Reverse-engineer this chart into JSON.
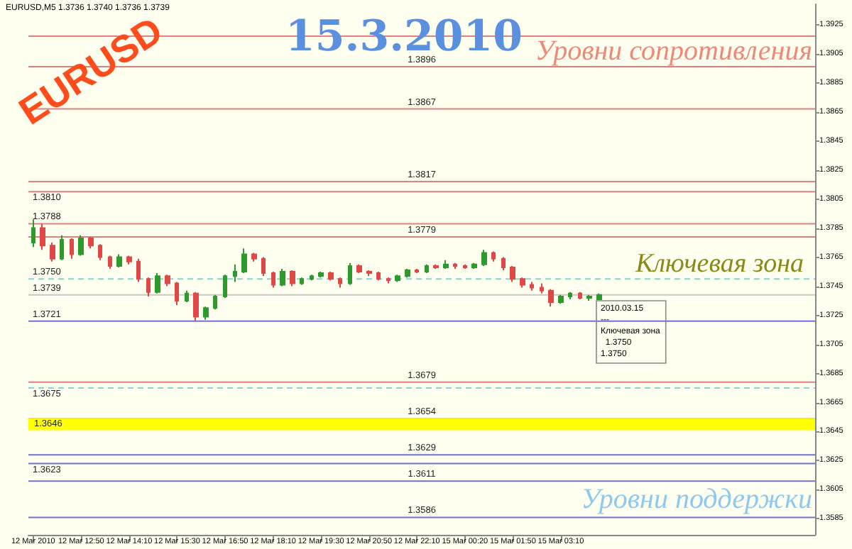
{
  "chart_data": {
    "type": "candlestick",
    "title": "15.3.2010",
    "annotations": [
      "EURUSD,M5 1.3736 1.3740 1.3736 1.3739",
      "EURUSD",
      "Уровни сопротивления",
      "Ключевая зона",
      "2010.03.15\n---\nКлючевая зона\n  1.3750\n1.3750",
      "Уровни поддержки"
    ],
    "categories": [
      "12 Mar 2010",
      null,
      null,
      null,
      null,
      "12 Mar 12:50",
      null,
      null,
      null,
      null,
      "12 Mar 14:10",
      null,
      null,
      null,
      null,
      "12 Mar 15:30",
      null,
      null,
      null,
      null,
      "12 Mar 16:50",
      null,
      null,
      null,
      null,
      "12 Mar 18:10",
      null,
      null,
      null,
      null,
      "12 Mar 19:30",
      null,
      null,
      null,
      null,
      "12 Mar 20:50",
      null,
      null,
      null,
      null,
      "12 Mar 22:10",
      null,
      null,
      null,
      null,
      "15 Mar 00:20",
      null,
      null,
      null,
      null,
      "15 Mar 01:50",
      null,
      null,
      null,
      null,
      "15 Mar 03:10",
      null,
      null,
      null,
      null,
      null,
      null,
      null,
      null,
      null,
      null,
      null,
      null,
      null,
      null,
      null,
      null,
      null,
      null,
      null,
      null,
      null,
      null,
      null,
      null,
      null,
      null
    ],
    "ohlc": [
      [
        1.3775,
        1.3791,
        1.3772,
        1.3785
      ],
      [
        1.3785,
        1.3788,
        1.377,
        1.3773
      ],
      [
        1.3773,
        1.3775,
        1.3762,
        1.3764
      ],
      [
        1.3764,
        1.378,
        1.3763,
        1.3777
      ],
      [
        1.3777,
        1.3778,
        1.3764,
        1.3767
      ],
      [
        1.3767,
        1.378,
        1.3766,
        1.3778
      ],
      [
        1.3778,
        1.3779,
        1.3771,
        1.3773
      ],
      [
        1.3773,
        1.3774,
        1.3763,
        1.3765
      ],
      [
        1.3765,
        1.3766,
        1.3757,
        1.3759
      ],
      [
        1.3759,
        1.3767,
        1.3758,
        1.3765
      ],
      [
        1.3765,
        1.3766,
        1.376,
        1.3762
      ],
      [
        1.3762,
        1.3764,
        1.3748,
        1.375
      ],
      [
        1.375,
        1.3751,
        1.3738,
        1.3741
      ],
      [
        1.3741,
        1.3754,
        1.374,
        1.3752
      ],
      [
        1.3752,
        1.3753,
        1.3745,
        1.3747
      ],
      [
        1.3747,
        1.3748,
        1.3732,
        1.3735
      ],
      [
        1.3735,
        1.3742,
        1.3734,
        1.374
      ],
      [
        1.374,
        1.3741,
        1.3721,
        1.3724
      ],
      [
        1.3724,
        1.3731,
        1.3722,
        1.373
      ],
      [
        1.373,
        1.3739,
        1.3729,
        1.3738
      ],
      [
        1.3738,
        1.3753,
        1.3737,
        1.3752
      ],
      [
        1.3752,
        1.376,
        1.3748,
        1.3755
      ],
      [
        1.3755,
        1.3771,
        1.3754,
        1.3767
      ],
      [
        1.3767,
        1.3768,
        1.3762,
        1.3764
      ],
      [
        1.3764,
        1.3765,
        1.3752,
        1.3754
      ],
      [
        1.3754,
        1.3755,
        1.3744,
        1.3746
      ],
      [
        1.3746,
        1.3757,
        1.3745,
        1.3755
      ],
      [
        1.3755,
        1.3756,
        1.3745,
        1.3747
      ],
      [
        1.3747,
        1.3751,
        1.3746,
        1.375
      ],
      [
        1.375,
        1.3753,
        1.3749,
        1.3752
      ],
      [
        1.3752,
        1.3755,
        1.3751,
        1.3754
      ],
      [
        1.3754,
        1.3755,
        1.3749,
        1.375
      ],
      [
        1.375,
        1.3751,
        1.3744,
        1.3747
      ],
      [
        1.3747,
        1.3761,
        1.3746,
        1.3759
      ],
      [
        1.3759,
        1.376,
        1.3754,
        1.3755
      ],
      [
        1.3755,
        1.3756,
        1.3752,
        1.3754
      ],
      [
        1.3754,
        1.3755,
        1.3749,
        1.375
      ],
      [
        1.375,
        1.3751,
        1.3747,
        1.3749
      ],
      [
        1.3749,
        1.3753,
        1.3748,
        1.3752
      ],
      [
        1.3752,
        1.3757,
        1.3751,
        1.3756
      ],
      [
        1.3756,
        1.3757,
        1.3754,
        1.3755
      ],
      [
        1.3755,
        1.376,
        1.3754,
        1.3759
      ],
      [
        1.3759,
        1.376,
        1.3757,
        1.3758
      ],
      [
        1.3758,
        1.3763,
        1.3757,
        1.376
      ],
      [
        1.376,
        1.3761,
        1.3757,
        1.3759
      ],
      [
        1.3759,
        1.376,
        1.3757,
        1.3758
      ],
      [
        1.3758,
        1.3761,
        1.3757,
        1.376
      ],
      [
        1.376,
        1.377,
        1.3759,
        1.3768
      ],
      [
        1.3768,
        1.3769,
        1.3762,
        1.3764
      ],
      [
        1.3764,
        1.3765,
        1.3756,
        1.3758
      ],
      [
        1.3758,
        1.3759,
        1.3748,
        1.375
      ],
      [
        1.375,
        1.3751,
        1.3744,
        1.3746
      ],
      [
        1.3746,
        1.3748,
        1.3742,
        1.3744
      ],
      [
        1.3744,
        1.3747,
        1.374,
        1.3742
      ],
      [
        1.3742,
        1.3743,
        1.3731,
        1.3734
      ],
      [
        1.3734,
        1.3739,
        1.3733,
        1.3738
      ],
      [
        1.3738,
        1.3741,
        1.3736,
        1.374
      ],
      [
        1.374,
        1.3741,
        1.3736,
        1.3737
      ],
      [
        1.3737,
        1.3739,
        1.3735,
        1.3738
      ],
      [
        1.3736,
        1.374,
        1.3736,
        1.3739
      ],
      null,
      null,
      null,
      null,
      null,
      null,
      null,
      null,
      null,
      null,
      null,
      null,
      null,
      null,
      null,
      null,
      null,
      null,
      null,
      null,
      null,
      null
    ],
    "colors": [
      "#2e9a2e",
      "#e04848",
      "#e04848",
      "#2e9a2e",
      "#e04848",
      "#2e9a2e",
      "#e04848",
      "#e04848",
      "#e04848",
      "#2e9a2e",
      "#e04848",
      "#e04848",
      "#e04848",
      "#2e9a2e",
      "#e04848",
      "#e04848",
      "#2e9a2e",
      "#e04848",
      "#2e9a2e",
      "#2e9a2e",
      "#2e9a2e",
      "#2e9a2e",
      "#2e9a2e",
      "#e04848",
      "#e04848",
      "#e04848",
      "#2e9a2e",
      "#e04848",
      "#2e9a2e",
      "#2e9a2e",
      "#2e9a2e",
      "#e04848",
      "#e04848",
      "#2e9a2e",
      "#e04848",
      "#e04848",
      "#e04848",
      "#e04848",
      "#2e9a2e",
      "#2e9a2e",
      "#e04848",
      "#2e9a2e",
      "#e04848",
      "#2e9a2e",
      "#e04848",
      "#e04848",
      "#2e9a2e",
      "#2e9a2e",
      "#e04848",
      "#e04848",
      "#e04848",
      "#e04848",
      "#e04848",
      "#e04848",
      "#e04848",
      "#2e9a2e",
      "#2e9a2e",
      "#e04848",
      "#2e9a2e",
      "#2e9a2e",
      null,
      null,
      null,
      null,
      null,
      null,
      null,
      null,
      null,
      null,
      null,
      null,
      null,
      null,
      null,
      null,
      null,
      null,
      null,
      null,
      null,
      null
    ],
    "ylim": [
      1.3574,
      1.3939
    ],
    "yticks": [
      1.3585,
      1.3605,
      1.3625,
      1.3645,
      1.3665,
      1.3685,
      1.3705,
      1.3725,
      1.3745,
      1.3765,
      1.3785,
      1.3805,
      1.3825,
      1.3845,
      1.3865,
      1.3885,
      1.3905,
      1.3925
    ],
    "ref_lines": [
      {
        "axis": "y",
        "value": 1.3917,
        "label": null,
        "color": "#e08080"
      },
      {
        "axis": "y",
        "value": 1.3896,
        "label": "1.3896",
        "color": "#e08080"
      },
      {
        "axis": "y",
        "value": 1.3867,
        "label": "1.3867",
        "color": "#e08080"
      },
      {
        "axis": "y",
        "value": 1.3817,
        "label": "1.3817",
        "color": "#e08080"
      },
      {
        "axis": "y",
        "value": 1.381,
        "label": "1.3810",
        "color": "#e08080"
      },
      {
        "axis": "y",
        "value": 1.3788,
        "label": "1.3788",
        "color": "#e08080"
      },
      {
        "axis": "y",
        "value": 1.3779,
        "label": "1.3779",
        "color": "#e08080"
      },
      {
        "axis": "y",
        "value": 1.375,
        "label": "1.3750",
        "color": "#7fd8d8",
        "line_style": "dashed"
      },
      {
        "axis": "y",
        "value": 1.3739,
        "label": "1.3739",
        "color": "#c8c8c8"
      },
      {
        "axis": "y",
        "value": 1.3721,
        "label": "1.3721",
        "color": "#7070d8"
      },
      {
        "axis": "y",
        "value": 1.3679,
        "label": "1.3679",
        "color": "#e08080"
      },
      {
        "axis": "y",
        "value": 1.3675,
        "label": "1.3675",
        "color": "#7fd8d8",
        "line_style": "dashed"
      },
      {
        "axis": "y",
        "value": 1.3654,
        "label": "1.3654",
        "color": "#f0f000"
      },
      {
        "axis": "y",
        "value": 1.3629,
        "label": "1.3629",
        "color": "#7070d8"
      },
      {
        "axis": "y",
        "value": 1.3623,
        "label": "1.3623",
        "color": "#7070d8"
      },
      {
        "axis": "y",
        "value": 1.3611,
        "label": "1.3611",
        "color": "#7070d8"
      },
      {
        "axis": "y",
        "value": 1.3586,
        "label": "1.3586",
        "color": "#7070d8"
      }
    ],
    "bands": [
      {
        "axis": "y",
        "from": 1.3646,
        "to": 1.3654,
        "label": "1.3646",
        "color": "#ffff00"
      }
    ]
  }
}
